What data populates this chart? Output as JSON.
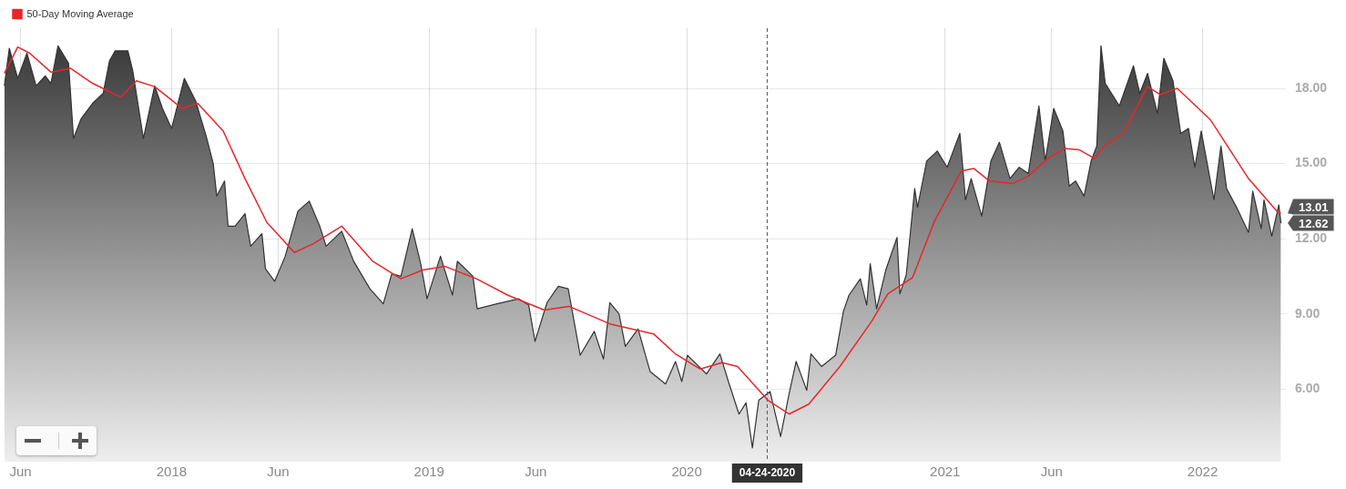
{
  "chart_data": {
    "type": "area",
    "series": [
      {
        "type": "area",
        "color": "#333333",
        "x": [
          "2017-05-09",
          "2017-05-16",
          "2017-05-28",
          "2017-06-10",
          "2017-06-23",
          "2017-07-06",
          "2017-07-14",
          "2017-07-24",
          "2017-08-08",
          "2017-08-15",
          "2017-08-26",
          "2017-09-11",
          "2017-09-26",
          "2017-10-05",
          "2017-10-13",
          "2017-10-31",
          "2017-11-07",
          "2017-11-22",
          "2017-12-08",
          "2017-12-19",
          "2018-01-01",
          "2018-01-19",
          "2018-02-04",
          "2018-02-19",
          "2018-03-01",
          "2018-03-06",
          "2018-03-17",
          "2018-03-22",
          "2018-04-01",
          "2018-04-15",
          "2018-04-23",
          "2018-05-09",
          "2018-05-14",
          "2018-05-27",
          "2018-06-11",
          "2018-06-29",
          "2018-07-15",
          "2018-07-30",
          "2018-08-08",
          "2018-08-30",
          "2018-09-16",
          "2018-10-09",
          "2018-10-28",
          "2018-11-09",
          "2018-11-22",
          "2018-12-08",
          "2018-12-20",
          "2018-12-29",
          "2019-01-17",
          "2019-02-03",
          "2019-02-10",
          "2019-03-04",
          "2019-03-10",
          "2019-04-07",
          "2019-05-08",
          "2019-05-22",
          "2019-05-31",
          "2019-06-17",
          "2019-07-03",
          "2019-07-17",
          "2019-08-03",
          "2019-08-23",
          "2019-09-05",
          "2019-09-14",
          "2019-09-27",
          "2019-10-06",
          "2019-10-24",
          "2019-11-10",
          "2019-12-02",
          "2019-12-16",
          "2019-12-25",
          "2020-01-02",
          "2020-01-29",
          "2020-02-17",
          "2020-02-29",
          "2020-03-15",
          "2020-03-25",
          "2020-04-03",
          "2020-04-12",
          "2020-04-28",
          "2020-05-13",
          "2020-05-25",
          "2020-06-04",
          "2020-06-19",
          "2020-06-25",
          "2020-07-10",
          "2020-07-30",
          "2020-08-10",
          "2020-08-18",
          "2020-09-03",
          "2020-09-12",
          "2020-09-17",
          "2020-09-26",
          "2020-10-09",
          "2020-10-25",
          "2020-10-29",
          "2020-11-07",
          "2020-11-19",
          "2020-11-23",
          "2020-12-06",
          "2020-12-21",
          "2021-01-04",
          "2021-01-22",
          "2021-01-30",
          "2021-02-07",
          "2021-02-22",
          "2021-03-07",
          "2021-03-19",
          "2021-04-03",
          "2021-04-16",
          "2021-04-29",
          "2021-05-14",
          "2021-05-23",
          "2021-06-04",
          "2021-06-17",
          "2021-06-26",
          "2021-07-05",
          "2021-07-17",
          "2021-07-27",
          "2021-08-04",
          "2021-08-10",
          "2021-08-16",
          "2021-09-05",
          "2021-09-25",
          "2021-10-04",
          "2021-10-15",
          "2021-10-29",
          "2021-11-07",
          "2021-11-20",
          "2021-12-01",
          "2021-12-12",
          "2021-12-21",
          "2021-12-30",
          "2022-01-17",
          "2022-01-27",
          "2022-02-04",
          "2022-02-19",
          "2022-03-07",
          "2022-03-13",
          "2022-03-25",
          "2022-03-29",
          "2022-04-09",
          "2022-04-19",
          "2022-04-22"
        ],
        "values": [
          18.1,
          19.6,
          18.4,
          19.4,
          18.1,
          18.5,
          18.2,
          19.7,
          19.0,
          16.0,
          16.8,
          17.4,
          17.8,
          19.1,
          19.5,
          19.5,
          18.7,
          16.0,
          18.1,
          17.2,
          16.4,
          18.4,
          17.5,
          16.1,
          15.0,
          13.7,
          14.3,
          12.5,
          12.5,
          13.0,
          11.7,
          12.2,
          10.8,
          10.3,
          11.3,
          13.1,
          13.5,
          12.5,
          11.7,
          12.3,
          11.1,
          10.0,
          9.4,
          10.6,
          10.5,
          12.4,
          11.0,
          9.6,
          11.3,
          9.75,
          11.1,
          10.5,
          9.2,
          9.4,
          9.6,
          9.35,
          7.9,
          9.45,
          10.1,
          10.0,
          7.35,
          8.3,
          7.2,
          9.45,
          9.0,
          7.7,
          8.4,
          6.7,
          6.2,
          7.1,
          6.3,
          7.35,
          6.6,
          7.4,
          6.3,
          5.0,
          5.45,
          3.65,
          5.55,
          5.9,
          4.1,
          5.8,
          7.1,
          5.95,
          7.4,
          6.9,
          7.35,
          9.1,
          9.75,
          10.4,
          9.35,
          11.0,
          9.2,
          10.75,
          12.05,
          9.8,
          10.55,
          14.0,
          13.25,
          15.1,
          15.5,
          14.85,
          16.2,
          13.55,
          14.4,
          12.9,
          15.1,
          15.85,
          14.4,
          14.85,
          14.6,
          17.3,
          15.1,
          17.2,
          16.3,
          14.1,
          14.3,
          13.7,
          15.1,
          15.7,
          19.7,
          18.2,
          17.3,
          18.9,
          17.8,
          18.6,
          17.0,
          19.2,
          18.3,
          16.2,
          16.4,
          14.85,
          16.3,
          13.55,
          15.7,
          14.0,
          13.2,
          12.25,
          13.9,
          12.4,
          13.55,
          12.1,
          13.35,
          12.62
        ]
      },
      {
        "type": "line",
        "name": "50-Day Moving Average",
        "color": "#e8262a",
        "x": [
          "2017-05-09",
          "2017-05-28",
          "2017-06-14",
          "2017-07-14",
          "2017-08-11",
          "2017-09-11",
          "2017-10-21",
          "2017-11-12",
          "2017-12-08",
          "2018-01-16",
          "2018-02-07",
          "2018-03-15",
          "2018-04-15",
          "2018-05-16",
          "2018-06-24",
          "2018-07-21",
          "2018-08-30",
          "2018-10-13",
          "2018-11-22",
          "2018-12-23",
          "2019-01-23",
          "2019-03-09",
          "2019-04-22",
          "2019-06-13",
          "2019-07-18",
          "2019-09-14",
          "2019-11-15",
          "2019-12-16",
          "2020-01-20",
          "2020-02-20",
          "2020-03-13",
          "2020-04-25",
          "2020-05-25",
          "2020-06-22",
          "2020-08-05",
          "2020-09-19",
          "2020-10-12",
          "2020-11-16",
          "2020-12-17",
          "2021-01-24",
          "2021-02-11",
          "2021-03-05",
          "2021-04-07",
          "2021-04-29",
          "2021-05-26",
          "2021-06-19",
          "2021-07-10",
          "2021-08-01",
          "2021-08-14",
          "2021-09-10",
          "2021-10-15",
          "2021-11-02",
          "2021-11-26",
          "2022-01-12",
          "2022-03-07",
          "2022-04-16",
          "2022-04-22"
        ],
        "values": [
          18.6,
          19.65,
          19.4,
          18.65,
          18.8,
          18.2,
          17.65,
          18.3,
          18.07,
          17.2,
          17.4,
          16.3,
          14.4,
          12.65,
          11.45,
          11.8,
          12.5,
          11.1,
          10.4,
          10.75,
          10.9,
          10.4,
          9.75,
          9.15,
          9.3,
          8.6,
          8.2,
          7.4,
          6.8,
          7.05,
          6.9,
          5.55,
          5.0,
          5.4,
          6.9,
          8.7,
          9.8,
          10.45,
          12.7,
          14.7,
          14.8,
          14.3,
          14.2,
          14.5,
          15.2,
          15.6,
          15.55,
          15.2,
          15.7,
          16.2,
          18.07,
          17.75,
          18.0,
          16.75,
          14.4,
          13.1,
          13.01
        ]
      }
    ],
    "xlim": [
      "2017-05-08",
      "2022-04-29"
    ],
    "xticks": [
      {
        "value": "2017-06-01",
        "label": "Jun"
      },
      {
        "value": "2018-01-01",
        "label": "2018"
      },
      {
        "value": "2018-06-01",
        "label": "Jun"
      },
      {
        "value": "2019-01-01",
        "label": "2019"
      },
      {
        "value": "2019-06-01",
        "label": "Jun"
      },
      {
        "value": "2020-01-01",
        "label": "2020"
      },
      {
        "value": "2021-01-01",
        "label": "2021"
      },
      {
        "value": "2021-06-01",
        "label": "Jun"
      },
      {
        "value": "2022-01-01",
        "label": "2022"
      }
    ],
    "ylim": [
      3.1,
      20.4
    ],
    "yticks": [
      {
        "value": 6,
        "label": "6.00"
      },
      {
        "value": 9,
        "label": "9.00"
      },
      {
        "value": 12,
        "label": "12.00"
      },
      {
        "value": 15,
        "label": "15.00"
      },
      {
        "value": 18,
        "label": "18.00"
      }
    ],
    "ref_lines": [
      {
        "axis": "x",
        "value": "2020-04-24",
        "label": "04-24-2020",
        "color": "#555555",
        "line_style": "dashed"
      }
    ],
    "annotations": [
      {
        "text": "13.01",
        "x": "2022-04-22",
        "y": 13.01
      },
      {
        "text": "12.62",
        "x": "2022-04-22",
        "y": 12.62
      }
    ],
    "grid": true,
    "legend": "top left"
  }
}
